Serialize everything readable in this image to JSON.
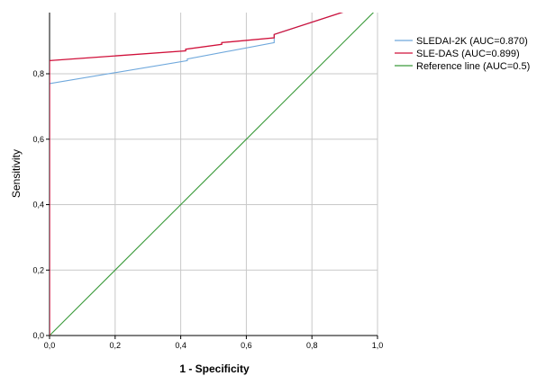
{
  "chart_data": {
    "type": "line",
    "title": "",
    "xlabel": "1 - Specificity",
    "ylabel": "Sensitivity",
    "xlim": [
      0,
      1
    ],
    "ylim": [
      0,
      1
    ],
    "x_ticks": [
      "0,0",
      "0,2",
      "0,4",
      "0,6",
      "0,8",
      "1,0"
    ],
    "y_ticks": [
      "0,0",
      "0,2",
      "0,4",
      "0,6",
      "0,8"
    ],
    "grid": true,
    "legend_position": "top-right, outside plot",
    "series": [
      {
        "name": "SLEDAI-2K (AUC=0.870)",
        "color": "#6fa8dc",
        "points": [
          [
            0,
            0
          ],
          [
            0,
            0.77
          ],
          [
            0.42,
            0.84
          ],
          [
            0.42,
            0.845
          ],
          [
            0.685,
            0.895
          ],
          [
            0.685,
            0.92
          ],
          [
            0.93,
            1.0
          ]
        ]
      },
      {
        "name": "SLE-DAS (AUC=0.899)",
        "color": "#d0103a",
        "points": [
          [
            0,
            0
          ],
          [
            0,
            0.84
          ],
          [
            0.415,
            0.87
          ],
          [
            0.415,
            0.875
          ],
          [
            0.525,
            0.89
          ],
          [
            0.525,
            0.895
          ],
          [
            0.685,
            0.91
          ],
          [
            0.685,
            0.92
          ],
          [
            0.93,
            1.0
          ]
        ]
      },
      {
        "name": "Reference line (AUC=0.5)",
        "color": "#3a9a3a",
        "points": [
          [
            0,
            0
          ],
          [
            1,
            1
          ]
        ]
      }
    ]
  }
}
